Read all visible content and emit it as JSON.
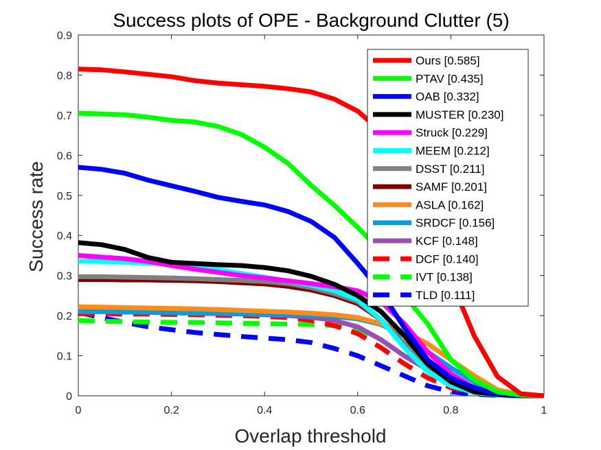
{
  "chart_data": {
    "type": "line",
    "title": "Success plots of OPE - Background Clutter (5)",
    "xlabel": "Overlap threshold",
    "ylabel": "Success rate",
    "xlim": [
      0,
      1
    ],
    "ylim": [
      0,
      0.9
    ],
    "xticks": [
      0,
      0.2,
      0.4,
      0.6,
      0.8,
      1
    ],
    "xtick_labels": [
      "0",
      "0.2",
      "0.4",
      "0.6",
      "0.8",
      "1"
    ],
    "yticks": [
      0,
      0.1,
      0.2,
      0.3,
      0.4,
      0.5,
      0.6,
      0.7,
      0.8,
      0.9
    ],
    "ytick_labels": [
      "0",
      "0.1",
      "0.2",
      "0.3",
      "0.4",
      "0.5",
      "0.6",
      "0.7",
      "0.8",
      "0.9"
    ],
    "grid": false,
    "legend_position": "top-right",
    "x": [
      0,
      0.05,
      0.1,
      0.15,
      0.2,
      0.25,
      0.3,
      0.35,
      0.4,
      0.45,
      0.5,
      0.55,
      0.6,
      0.65,
      0.7,
      0.75,
      0.8,
      0.85,
      0.9,
      0.95,
      1.0
    ],
    "series": [
      {
        "name": "Ours [0.585]",
        "color": "#ff0000",
        "dash": false,
        "values": [
          0.815,
          0.813,
          0.808,
          0.802,
          0.796,
          0.786,
          0.78,
          0.776,
          0.772,
          0.766,
          0.758,
          0.74,
          0.71,
          0.66,
          0.56,
          0.42,
          0.29,
          0.15,
          0.048,
          0.005,
          0.0
        ]
      },
      {
        "name": "PTAV [0.435]",
        "color": "#00ff00",
        "dash": false,
        "values": [
          0.705,
          0.703,
          0.701,
          0.695,
          0.687,
          0.683,
          0.672,
          0.652,
          0.62,
          0.58,
          0.525,
          0.475,
          0.42,
          0.36,
          0.25,
          0.18,
          0.09,
          0.04,
          0.01,
          0.002,
          0.0
        ]
      },
      {
        "name": "OAB [0.332]",
        "color": "#0000ff",
        "dash": false,
        "values": [
          0.57,
          0.565,
          0.555,
          0.538,
          0.524,
          0.51,
          0.495,
          0.485,
          0.476,
          0.46,
          0.435,
          0.395,
          0.33,
          0.26,
          0.17,
          0.09,
          0.045,
          0.02,
          0.005,
          0.001,
          0.0
        ]
      },
      {
        "name": "MUSTER [0.230]",
        "color": "#000000",
        "dash": false,
        "values": [
          0.382,
          0.377,
          0.365,
          0.345,
          0.333,
          0.33,
          0.327,
          0.325,
          0.32,
          0.312,
          0.298,
          0.278,
          0.25,
          0.21,
          0.15,
          0.08,
          0.035,
          0.01,
          0.003,
          0.0,
          0.0
        ]
      },
      {
        "name": "Struck [0.229]",
        "color": "#ff00ff",
        "dash": false,
        "values": [
          0.35,
          0.346,
          0.342,
          0.335,
          0.325,
          0.316,
          0.308,
          0.3,
          0.294,
          0.287,
          0.28,
          0.272,
          0.262,
          0.235,
          0.18,
          0.11,
          0.055,
          0.02,
          0.005,
          0.001,
          0.0
        ]
      },
      {
        "name": "MEEM [0.212]",
        "color": "#00ffff",
        "dash": false,
        "values": [
          0.336,
          0.335,
          0.333,
          0.331,
          0.328,
          0.322,
          0.315,
          0.305,
          0.296,
          0.286,
          0.276,
          0.262,
          0.24,
          0.19,
          0.12,
          0.06,
          0.025,
          0.008,
          0.002,
          0.0,
          0.0
        ]
      },
      {
        "name": "DSST [0.211]",
        "color": "#808080",
        "dash": false,
        "values": [
          0.297,
          0.297,
          0.296,
          0.295,
          0.294,
          0.292,
          0.29,
          0.288,
          0.285,
          0.28,
          0.27,
          0.255,
          0.235,
          0.19,
          0.13,
          0.075,
          0.035,
          0.012,
          0.003,
          0.0,
          0.0
        ]
      },
      {
        "name": "SAMF [0.201]",
        "color": "#800000",
        "dash": false,
        "values": [
          0.29,
          0.29,
          0.289,
          0.289,
          0.288,
          0.287,
          0.285,
          0.282,
          0.279,
          0.273,
          0.264,
          0.25,
          0.23,
          0.19,
          0.13,
          0.075,
          0.035,
          0.012,
          0.003,
          0.0,
          0.0
        ]
      },
      {
        "name": "ASLA [0.162]",
        "color": "#ff8c1a",
        "dash": false,
        "values": [
          0.222,
          0.221,
          0.22,
          0.219,
          0.218,
          0.217,
          0.215,
          0.213,
          0.211,
          0.209,
          0.206,
          0.202,
          0.195,
          0.18,
          0.16,
          0.13,
          0.09,
          0.05,
          0.015,
          0.003,
          0.0
        ]
      },
      {
        "name": "SRDCF [0.156]",
        "color": "#00a0e0",
        "dash": false,
        "values": [
          0.21,
          0.21,
          0.209,
          0.209,
          0.208,
          0.207,
          0.206,
          0.205,
          0.204,
          0.203,
          0.201,
          0.198,
          0.192,
          0.178,
          0.15,
          0.11,
          0.07,
          0.035,
          0.01,
          0.002,
          0.0
        ]
      },
      {
        "name": "KCF [0.148]",
        "color": "#9b4fb0",
        "dash": false,
        "values": [
          0.21,
          0.21,
          0.209,
          0.208,
          0.207,
          0.206,
          0.205,
          0.204,
          0.202,
          0.2,
          0.196,
          0.188,
          0.172,
          0.14,
          0.1,
          0.065,
          0.04,
          0.022,
          0.01,
          0.004,
          0.0
        ]
      },
      {
        "name": "DCF [0.140]",
        "color": "#ff0000",
        "dash": true,
        "values": [
          0.205,
          0.205,
          0.204,
          0.204,
          0.203,
          0.202,
          0.201,
          0.2,
          0.198,
          0.195,
          0.188,
          0.175,
          0.155,
          0.12,
          0.08,
          0.045,
          0.02,
          0.008,
          0.002,
          0.0,
          0.0
        ]
      },
      {
        "name": "IVT [0.138]",
        "color": "#00ff00",
        "dash": true,
        "values": [
          0.188,
          0.186,
          0.185,
          0.184,
          0.183,
          0.183,
          0.182,
          0.181,
          0.18,
          0.179,
          0.178,
          0.175,
          0.165,
          0.14,
          0.1,
          0.068,
          0.04,
          0.02,
          0.008,
          0.002,
          0.0
        ]
      },
      {
        "name": "TLD [0.111]",
        "color": "#0000ff",
        "dash": true,
        "values": [
          0.208,
          0.195,
          0.183,
          0.172,
          0.165,
          0.158,
          0.153,
          0.148,
          0.144,
          0.14,
          0.133,
          0.118,
          0.1,
          0.075,
          0.05,
          0.025,
          0.01,
          0.004,
          0.001,
          0.0,
          0.0
        ]
      }
    ]
  }
}
